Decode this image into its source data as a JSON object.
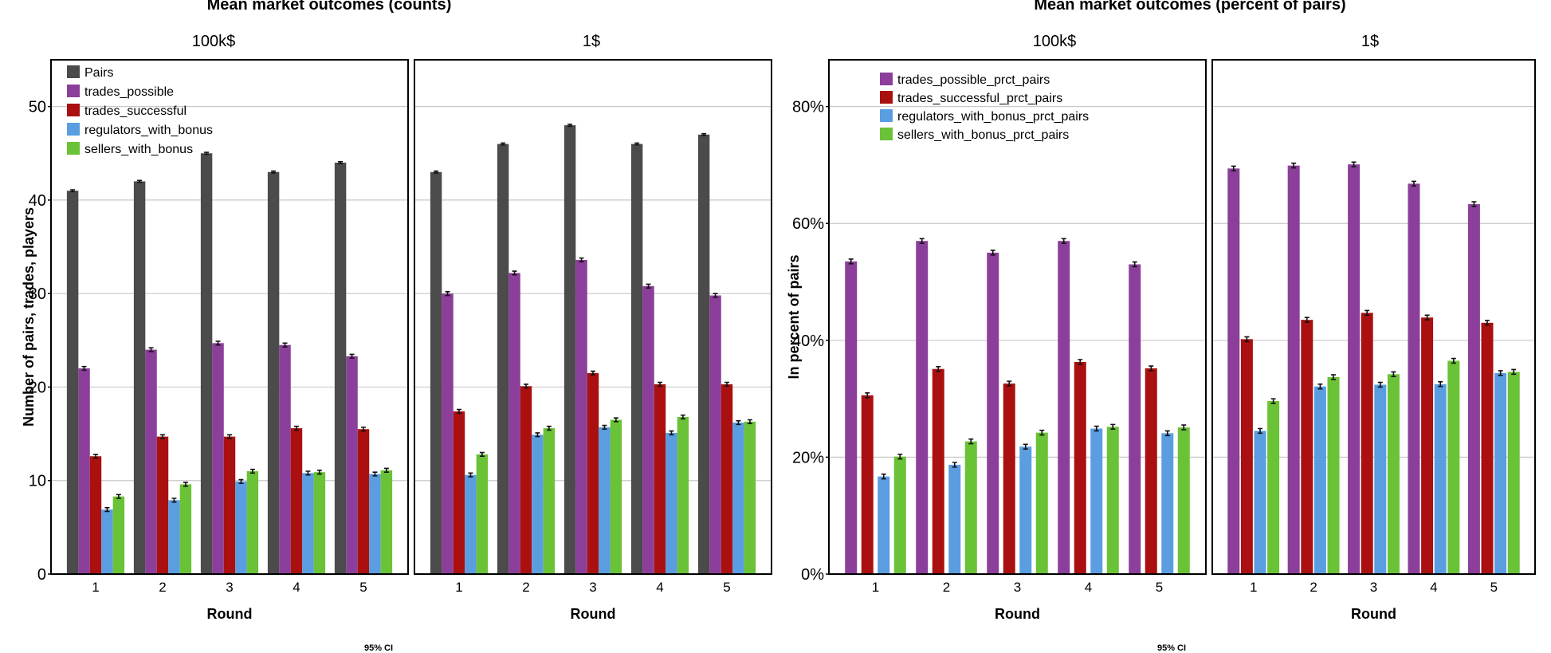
{
  "chart_data": [
    {
      "type": "bar",
      "title": "Mean market outcomes (counts)",
      "ylabel": "Number of pairs, trades, players",
      "xlabel": "Round",
      "caption": "95% CI",
      "ylim": [
        0,
        55
      ],
      "yticks": [
        0,
        10,
        20,
        30,
        40,
        50
      ],
      "ytick_labels": [
        "0",
        "10",
        "20",
        "30",
        "40",
        "50"
      ],
      "categories": [
        "1",
        "2",
        "3",
        "4",
        "5"
      ],
      "legend": {
        "location": "top-left",
        "entries": [
          "Pairs",
          "trades_possible",
          "trades_successful",
          "regulators_with_bonus",
          "sellers_with_bonus"
        ]
      },
      "facets": [
        {
          "label": "100k$",
          "series": [
            {
              "name": "Pairs",
              "color": "#4b4b4b",
              "values": [
                41,
                42,
                45,
                43,
                44
              ],
              "err": [
                0.1,
                0.1,
                0.1,
                0.1,
                0.1
              ]
            },
            {
              "name": "trades_possible",
              "color": "#8b3f9a",
              "values": [
                22,
                24,
                24.7,
                24.5,
                23.3
              ],
              "err": [
                0.2,
                0.2,
                0.2,
                0.2,
                0.2
              ]
            },
            {
              "name": "trades_successful",
              "color": "#aa1010",
              "values": [
                12.6,
                14.7,
                14.7,
                15.6,
                15.5
              ],
              "err": [
                0.2,
                0.2,
                0.2,
                0.2,
                0.2
              ]
            },
            {
              "name": "regulators_with_bonus",
              "color": "#5a9de0",
              "values": [
                6.9,
                7.9,
                9.9,
                10.8,
                10.7
              ],
              "err": [
                0.2,
                0.2,
                0.2,
                0.2,
                0.2
              ]
            },
            {
              "name": "sellers_with_bonus",
              "color": "#6ac236",
              "values": [
                8.3,
                9.6,
                11.0,
                10.9,
                11.1
              ],
              "err": [
                0.2,
                0.2,
                0.2,
                0.2,
                0.2
              ]
            }
          ]
        },
        {
          "label": "1$",
          "series": [
            {
              "name": "Pairs",
              "color": "#4b4b4b",
              "values": [
                43,
                46,
                48,
                46,
                47
              ],
              "err": [
                0.1,
                0.1,
                0.1,
                0.1,
                0.1
              ]
            },
            {
              "name": "trades_possible",
              "color": "#8b3f9a",
              "values": [
                30,
                32.2,
                33.6,
                30.8,
                29.8
              ],
              "err": [
                0.2,
                0.2,
                0.2,
                0.2,
                0.2
              ]
            },
            {
              "name": "trades_successful",
              "color": "#aa1010",
              "values": [
                17.4,
                20.1,
                21.5,
                20.3,
                20.3
              ],
              "err": [
                0.2,
                0.2,
                0.2,
                0.2,
                0.2
              ]
            },
            {
              "name": "regulators_with_bonus",
              "color": "#5a9de0",
              "values": [
                10.6,
                14.9,
                15.7,
                15.1,
                16.2
              ],
              "err": [
                0.2,
                0.2,
                0.2,
                0.2,
                0.2
              ]
            },
            {
              "name": "sellers_with_bonus",
              "color": "#6ac236",
              "values": [
                12.8,
                15.6,
                16.5,
                16.8,
                16.3
              ],
              "err": [
                0.2,
                0.2,
                0.2,
                0.2,
                0.2
              ]
            }
          ]
        }
      ]
    },
    {
      "type": "bar",
      "title": "Mean market outcomes (percent of pairs)",
      "ylabel": "In percent of pairs",
      "xlabel": "Round",
      "caption": "95% CI",
      "ylim": [
        0,
        88
      ],
      "yticks": [
        0,
        20,
        40,
        60,
        80
      ],
      "ytick_labels": [
        "0%",
        "20%",
        "40%",
        "60%",
        "80%"
      ],
      "categories": [
        "1",
        "2",
        "3",
        "4",
        "5"
      ],
      "legend": {
        "location": "top-left",
        "entries": [
          "trades_possible_prct_pairs",
          "trades_successful_prct_pairs",
          "regulators_with_bonus_prct_pairs",
          "sellers_with_bonus_prct_pairs"
        ]
      },
      "facets": [
        {
          "label": "100k$",
          "series": [
            {
              "name": "trades_possible_prct_pairs",
              "color": "#8b3f9a",
              "values": [
                53.5,
                57,
                55,
                57,
                53
              ],
              "err": [
                0.4,
                0.4,
                0.4,
                0.4,
                0.4
              ]
            },
            {
              "name": "trades_successful_prct_pairs",
              "color": "#aa1010",
              "values": [
                30.6,
                35.1,
                32.6,
                36.3,
                35.2
              ],
              "err": [
                0.4,
                0.4,
                0.4,
                0.4,
                0.4
              ]
            },
            {
              "name": "regulators_with_bonus_prct_pairs",
              "color": "#5a9de0",
              "values": [
                16.7,
                18.7,
                21.8,
                24.9,
                24.1
              ],
              "err": [
                0.4,
                0.4,
                0.4,
                0.4,
                0.4
              ]
            },
            {
              "name": "sellers_with_bonus_prct_pairs",
              "color": "#6ac236",
              "values": [
                20.1,
                22.7,
                24.2,
                25.2,
                25.1
              ],
              "err": [
                0.4,
                0.4,
                0.4,
                0.4,
                0.4
              ]
            }
          ]
        },
        {
          "label": "1$",
          "series": [
            {
              "name": "trades_possible_prct_pairs",
              "color": "#8b3f9a",
              "values": [
                69.4,
                69.9,
                70.1,
                66.8,
                63.3
              ],
              "err": [
                0.4,
                0.4,
                0.4,
                0.4,
                0.4
              ]
            },
            {
              "name": "trades_successful_prct_pairs",
              "color": "#aa1010",
              "values": [
                40.2,
                43.5,
                44.7,
                43.9,
                43.0
              ],
              "err": [
                0.4,
                0.4,
                0.4,
                0.4,
                0.4
              ]
            },
            {
              "name": "regulators_with_bonus_prct_pairs",
              "color": "#5a9de0",
              "values": [
                24.5,
                32.1,
                32.4,
                32.5,
                34.4
              ],
              "err": [
                0.4,
                0.4,
                0.4,
                0.4,
                0.4
              ]
            },
            {
              "name": "sellers_with_bonus_prct_pairs",
              "color": "#6ac236",
              "values": [
                29.6,
                33.7,
                34.2,
                36.5,
                34.6
              ],
              "err": [
                0.4,
                0.4,
                0.4,
                0.4,
                0.4
              ]
            }
          ]
        }
      ]
    }
  ]
}
